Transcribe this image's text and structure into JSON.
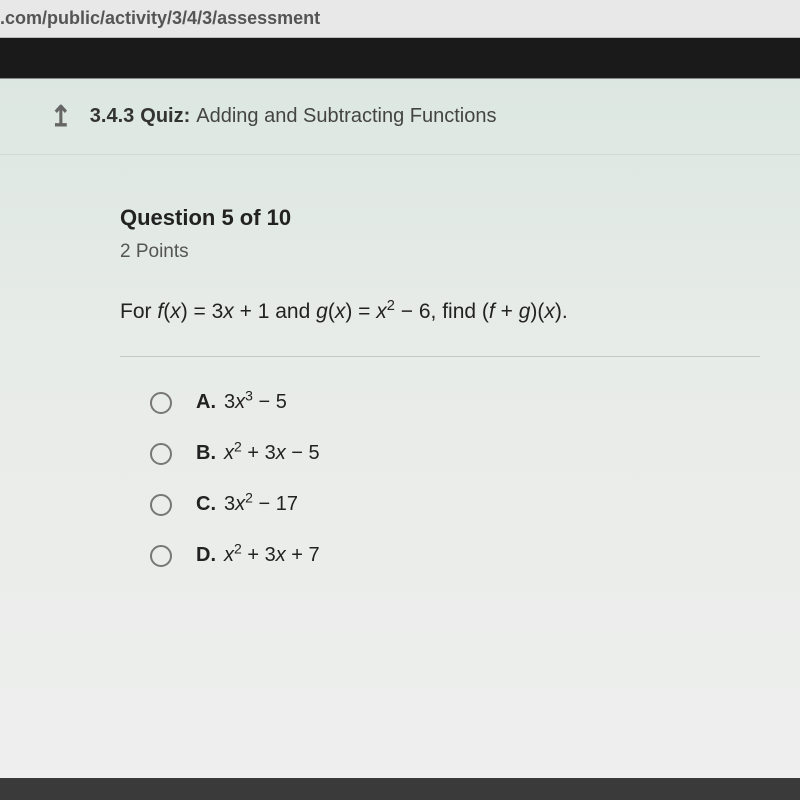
{
  "browser": {
    "url_fragment": ".com/public/activity/3/4/3/assessment"
  },
  "header": {
    "quiz_number": "3.4.3",
    "quiz_label": "Quiz:",
    "quiz_title": "Adding and Subtracting Functions"
  },
  "question": {
    "heading": "Question 5 of 10",
    "points": "2 Points",
    "prompt_prefix": "For ",
    "f_label": "f",
    "f_def": "(x) = 3x + 1",
    "and": " and ",
    "g_label": "g",
    "g_def": "(x) = x",
    "g_exp": "2",
    "g_tail": " − 6, find (",
    "fg": "f + g",
    "prompt_suffix": ")(x)."
  },
  "choices": {
    "a": {
      "letter": "A.",
      "lead": "3",
      "var": "x",
      "exp": "3",
      "tail": " − 5"
    },
    "b": {
      "letter": "B.",
      "var": "x",
      "exp": "2",
      "mid": " + 3",
      "var2": "x",
      "tail": " − 5"
    },
    "c": {
      "letter": "C.",
      "lead": "3",
      "var": "x",
      "exp": "2",
      "tail": " − 17"
    },
    "d": {
      "letter": "D.",
      "var": "x",
      "exp": "2",
      "mid": " + 3",
      "var2": "x",
      "tail": " + 7"
    }
  },
  "style": {
    "background_color": "#e8ece8",
    "text_color": "#222222",
    "muted_color": "#555555",
    "radio_border": "#777777",
    "divider_color": "rgba(0,0,0,0.15)",
    "heading_fontsize": 22,
    "body_fontsize": 20
  }
}
